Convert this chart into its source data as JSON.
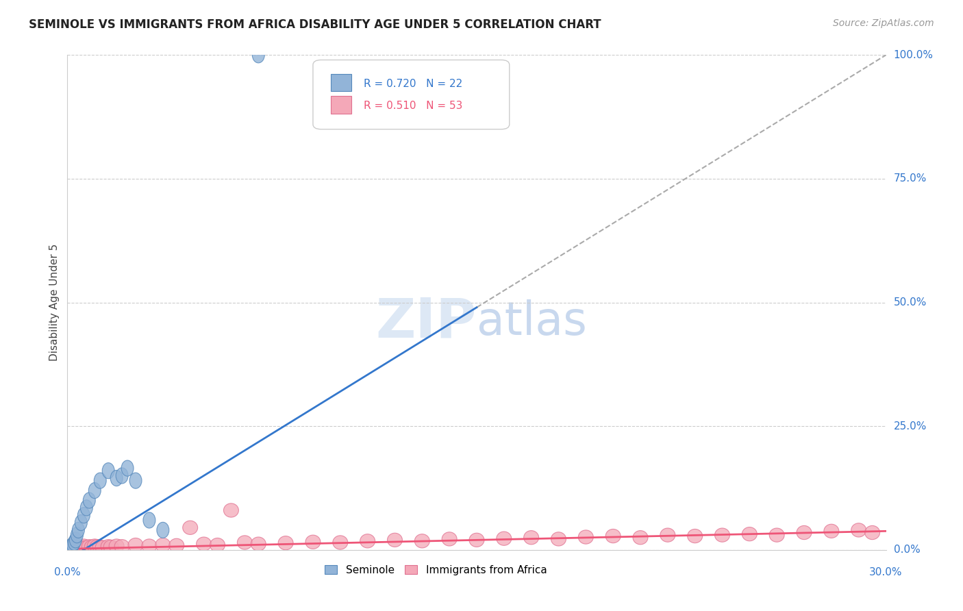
{
  "title": "SEMINOLE VS IMMIGRANTS FROM AFRICA DISABILITY AGE UNDER 5 CORRELATION CHART",
  "source": "Source: ZipAtlas.com",
  "ylabel": "Disability Age Under 5",
  "ytick_vals": [
    0.0,
    25.0,
    50.0,
    75.0,
    100.0
  ],
  "ytick_labels": [
    "0.0%",
    "25.0%",
    "50.0%",
    "75.0%",
    "100.0%"
  ],
  "xlim": [
    0.0,
    30.0
  ],
  "ylim": [
    0.0,
    100.0
  ],
  "seminole_R": 0.72,
  "seminole_N": 22,
  "africa_R": 0.51,
  "africa_N": 53,
  "blue_scatter_color": "#92B4D8",
  "blue_scatter_edge": "#5588BB",
  "pink_scatter_color": "#F4A8B8",
  "pink_scatter_edge": "#E07090",
  "blue_line_color": "#3377CC",
  "pink_line_color": "#EE5577",
  "dash_line_color": "#AAAAAA",
  "seminole_x": [
    0.05,
    0.1,
    0.15,
    0.2,
    0.25,
    0.3,
    0.35,
    0.4,
    0.5,
    0.6,
    0.7,
    0.8,
    1.0,
    1.2,
    1.5,
    1.8,
    2.0,
    2.2,
    2.5,
    3.0,
    3.5,
    7.0
  ],
  "seminole_y": [
    0.3,
    0.5,
    0.8,
    1.0,
    1.5,
    2.0,
    3.0,
    4.0,
    5.5,
    7.0,
    8.5,
    10.0,
    12.0,
    14.0,
    16.0,
    14.5,
    15.0,
    16.5,
    14.0,
    6.0,
    4.0,
    100.0
  ],
  "africa_x": [
    0.05,
    0.1,
    0.15,
    0.2,
    0.25,
    0.3,
    0.4,
    0.5,
    0.6,
    0.7,
    0.8,
    0.9,
    1.0,
    1.1,
    1.2,
    1.3,
    1.5,
    1.6,
    1.8,
    2.0,
    2.5,
    3.0,
    3.5,
    4.0,
    5.0,
    5.5,
    6.5,
    7.0,
    8.0,
    9.0,
    10.0,
    11.0,
    12.0,
    13.0,
    14.0,
    15.0,
    16.0,
    17.0,
    18.0,
    19.0,
    20.0,
    21.0,
    22.0,
    23.0,
    24.0,
    25.0,
    26.0,
    27.0,
    28.0,
    29.0,
    29.5,
    4.5,
    6.0
  ],
  "africa_y": [
    0.2,
    0.3,
    0.4,
    0.5,
    0.6,
    0.5,
    0.7,
    0.6,
    0.8,
    0.5,
    0.7,
    0.6,
    0.8,
    0.7,
    0.6,
    0.5,
    0.7,
    0.6,
    0.8,
    0.7,
    1.0,
    0.8,
    1.0,
    0.9,
    1.2,
    1.0,
    1.5,
    1.2,
    1.4,
    1.6,
    1.5,
    1.8,
    2.0,
    1.8,
    2.2,
    2.0,
    2.3,
    2.5,
    2.2,
    2.6,
    2.8,
    2.5,
    3.0,
    2.8,
    3.0,
    3.2,
    3.0,
    3.5,
    3.8,
    4.0,
    3.5,
    4.5,
    8.0
  ],
  "blue_line_x0": 0.0,
  "blue_line_y0": -2.0,
  "blue_line_slope": 3.4,
  "pink_line_x0": 0.0,
  "pink_line_y0": 0.2,
  "pink_line_slope": 0.12,
  "dash_line_slope": 3.4,
  "dash_line_y0": -2.0
}
